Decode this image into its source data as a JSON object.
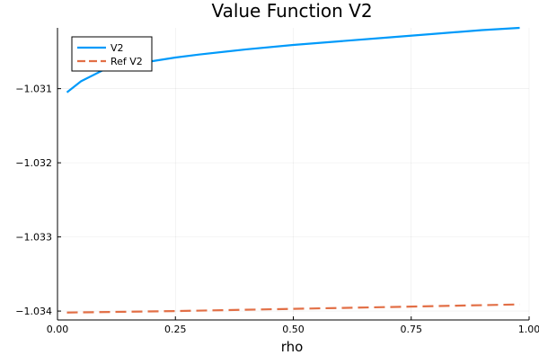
{
  "chart_data": {
    "type": "line",
    "title": "Value Function V2",
    "xlabel": "rho",
    "ylabel": "",
    "xlim": [
      0.0,
      1.0
    ],
    "ylim": [
      -1.03412,
      -1.03018
    ],
    "grid": true,
    "legend_position": "top-left",
    "x_ticks": [
      {
        "value": 0.0,
        "label": "0.00"
      },
      {
        "value": 0.25,
        "label": "0.25"
      },
      {
        "value": 0.5,
        "label": "0.50"
      },
      {
        "value": 0.75,
        "label": "0.75"
      },
      {
        "value": 1.0,
        "label": "1.00"
      }
    ],
    "y_ticks": [
      {
        "value": -1.031,
        "label": "−1.031"
      },
      {
        "value": -1.032,
        "label": "−1.032"
      },
      {
        "value": -1.033,
        "label": "−1.033"
      },
      {
        "value": -1.034,
        "label": "−1.034"
      }
    ],
    "series": [
      {
        "name": "V2",
        "color": "#009AFA",
        "dash": "solid",
        "x": [
          0.02,
          0.05,
          0.1,
          0.15,
          0.2,
          0.25,
          0.3,
          0.4,
          0.5,
          0.6,
          0.7,
          0.8,
          0.9,
          0.98
        ],
        "y": [
          -1.03105,
          -1.0309,
          -1.03074,
          -1.03068,
          -1.03063,
          -1.03058,
          -1.03054,
          -1.03047,
          -1.03041,
          -1.03036,
          -1.03031,
          -1.03026,
          -1.03021,
          -1.03018
        ]
      },
      {
        "name": "Ref V2",
        "color": "#E26F46",
        "dash": "dashed",
        "x": [
          0.02,
          0.25,
          0.5,
          0.75,
          0.98
        ],
        "y": [
          -1.03402,
          -1.034,
          -1.03397,
          -1.03394,
          -1.03391
        ]
      }
    ]
  }
}
